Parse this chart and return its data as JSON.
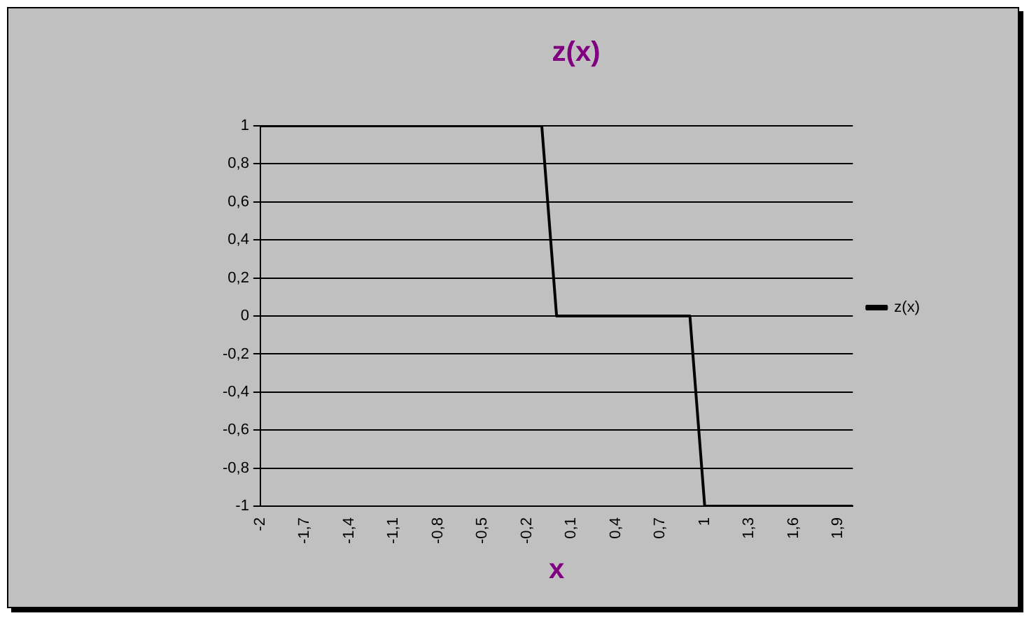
{
  "chart_data": {
    "type": "line",
    "title": "z(x)",
    "xlabel": "x",
    "categories": [
      "-2",
      null,
      null,
      "-1,7",
      null,
      null,
      "-1,4",
      null,
      null,
      "-1,1",
      null,
      null,
      "-0,8",
      null,
      null,
      "-0,5",
      null,
      null,
      "-0,2",
      null,
      null,
      "0,1",
      null,
      null,
      "0,4",
      null,
      null,
      "0,7",
      null,
      null,
      "1",
      null,
      null,
      "1,3",
      null,
      null,
      "1,6",
      null,
      null,
      "1,9",
      null
    ],
    "series": [
      {
        "name": "z(x)",
        "color": "#000000",
        "values": [
          1,
          1,
          1,
          1,
          1,
          1,
          1,
          1,
          1,
          1,
          1,
          1,
          1,
          1,
          1,
          1,
          1,
          1,
          1,
          1,
          0,
          0,
          0,
          0,
          0,
          0,
          0,
          0,
          0,
          0,
          -1,
          -1,
          -1,
          -1,
          -1,
          -1,
          -1,
          -1,
          -1,
          -1,
          -1
        ]
      }
    ],
    "ylim": [
      -1,
      1
    ],
    "yticks": [
      -1,
      {
        "value": -0.8,
        "label": "-0,8"
      },
      {
        "value": -0.6,
        "label": "-0,6"
      },
      {
        "value": -0.4,
        "label": "-0,4"
      },
      {
        "value": -0.2,
        "label": "-0,2"
      },
      0,
      {
        "value": 0.2,
        "label": "0,2"
      },
      {
        "value": 0.4,
        "label": "0,4"
      },
      {
        "value": 0.6,
        "label": "0,6"
      },
      {
        "value": 0.8,
        "label": "0,8"
      },
      1
    ],
    "grid": "y",
    "legend": "right",
    "marker": "none",
    "line_style": "solid"
  }
}
